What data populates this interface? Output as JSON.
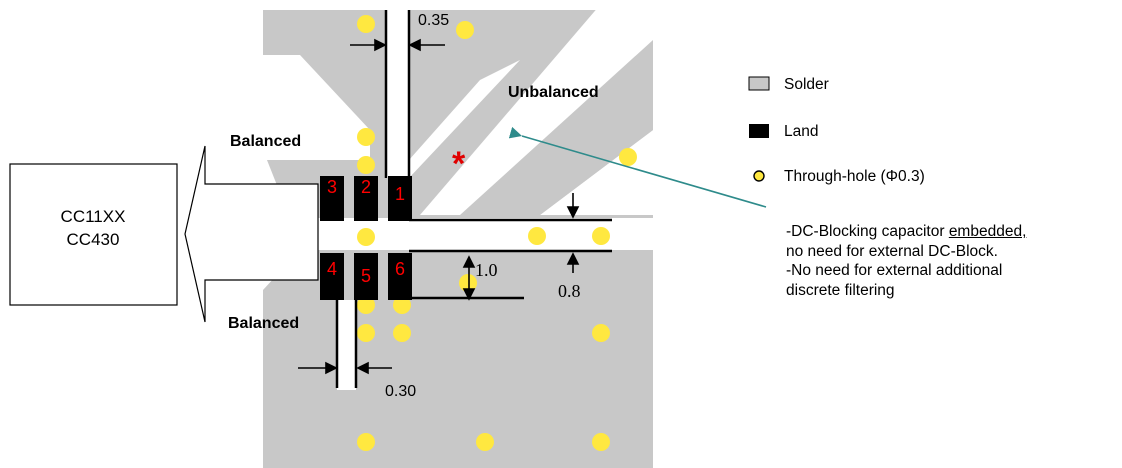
{
  "chip_box": {
    "line1": "CC11XX",
    "line2": "CC430"
  },
  "port_labels": {
    "balanced_top": "Balanced",
    "balanced_bottom": "Balanced",
    "unbalanced": "Unbalanced"
  },
  "pads": [
    "1",
    "2",
    "3",
    "4",
    "5",
    "6"
  ],
  "dimensions": {
    "top_gap": "0.35",
    "bottom_gap": "0.30",
    "pad_pitch": "1.0",
    "trace_width": "0.8"
  },
  "marker": "*",
  "legend": {
    "solder": "Solder",
    "land": "Land",
    "through_hole": "Through-hole (Φ0.3)"
  },
  "note": {
    "line1_prefix": "-DC-Blocking capacitor ",
    "line1_underlined": "embedded,",
    "line2": "no need for external DC-Block.",
    "line3": "-No need for external additional",
    "line4": "discrete filtering"
  },
  "colors": {
    "solder": "#c8c8c8",
    "land": "#000000",
    "through_hole": "#ffe840",
    "pad_number": "#ff0000",
    "arrow_teal": "#2e8b8b"
  }
}
